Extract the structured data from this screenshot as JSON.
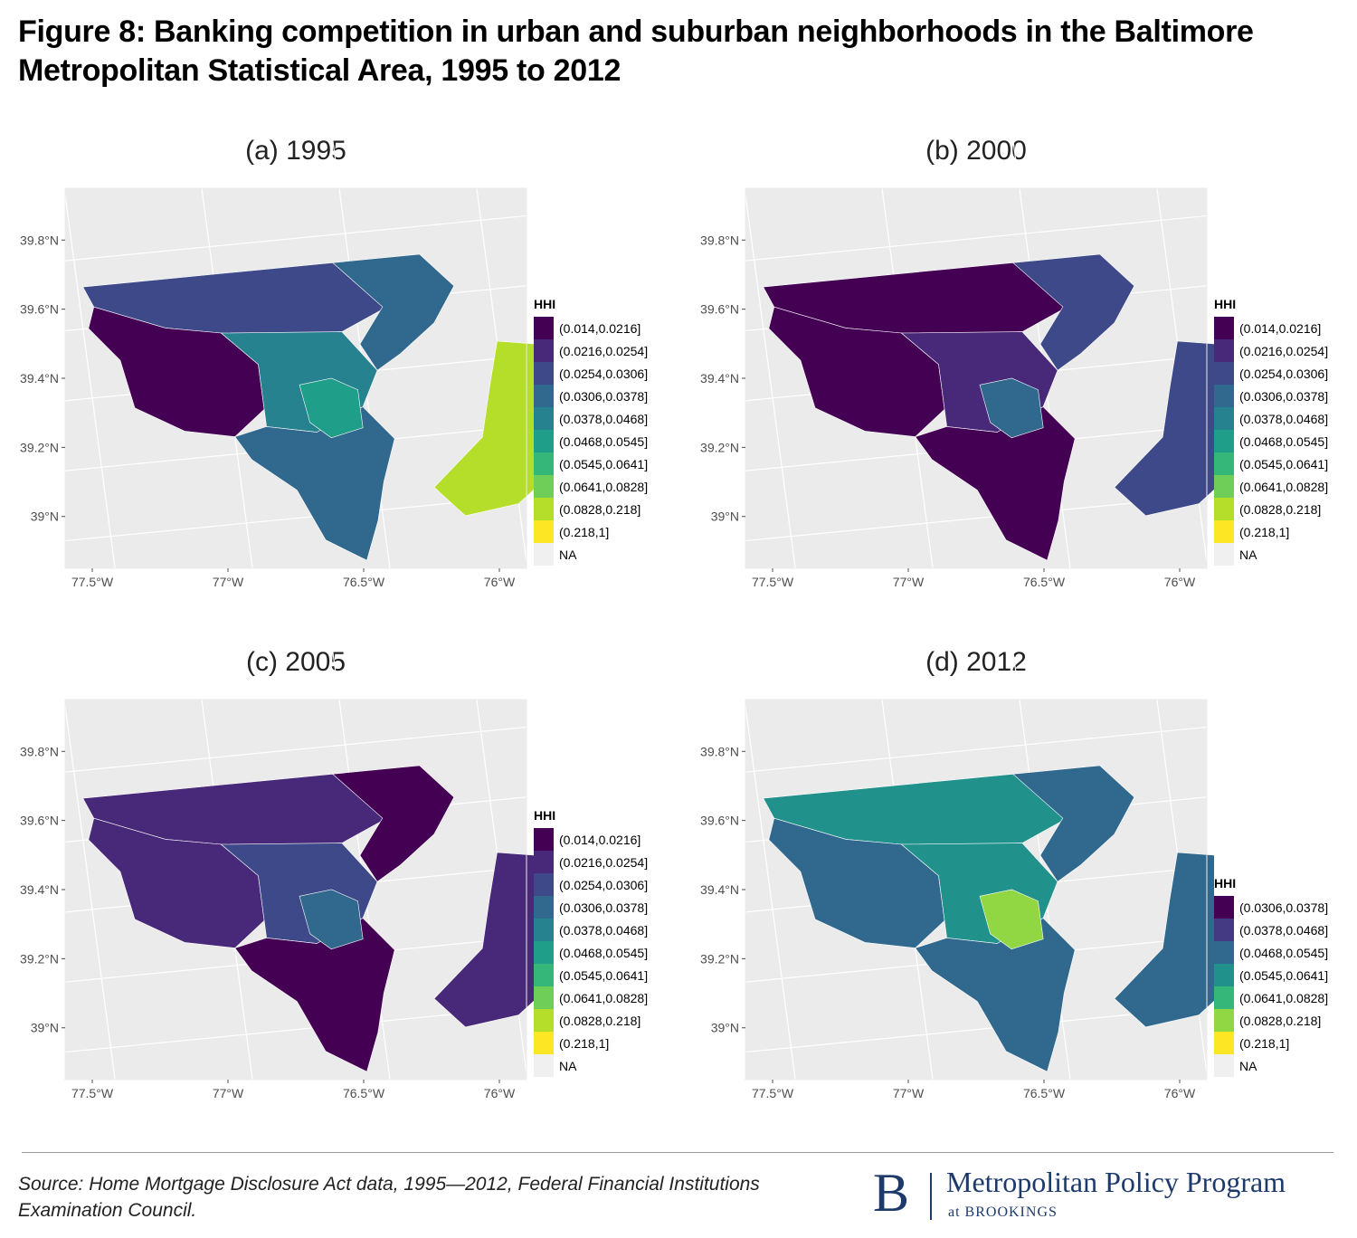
{
  "title": "Figure 8: Banking competition in urban and suburban neighborhoods in the Baltimore Metropolitan Statistical Area, 1995 to 2012",
  "chart_data": {
    "type": "choropleth map",
    "lat_ticks": [
      "39.8°N",
      "39.6°N",
      "39.4°N",
      "39.2°N",
      "39°N"
    ],
    "lon_ticks": [
      "77.5°W",
      "77°W",
      "76.5°W",
      "76°W"
    ],
    "lat_values": [
      39.8,
      39.6,
      39.4,
      39.2,
      39.0
    ],
    "lon_values": [
      -77.5,
      -77.0,
      -76.5,
      -76.0
    ],
    "lat_range": [
      38.85,
      39.95
    ],
    "lon_range": [
      -77.6,
      -75.9
    ],
    "palette": [
      "#440154",
      "#482878",
      "#3e4989",
      "#31688e",
      "#26828e",
      "#1f9e89",
      "#35b779",
      "#6ece58",
      "#b5de2b",
      "#fde725",
      "#f0f0f0"
    ],
    "panels": [
      {
        "title": "(a) 1995",
        "legend_title": "HHI",
        "legend": [
          {
            "label": "(0.014,0.0216]",
            "color": "#440154"
          },
          {
            "label": "(0.0216,0.0254]",
            "color": "#482878"
          },
          {
            "label": "(0.0254,0.0306]",
            "color": "#3e4989"
          },
          {
            "label": "(0.0306,0.0378]",
            "color": "#31688e"
          },
          {
            "label": "(0.0378,0.0468]",
            "color": "#26828e"
          },
          {
            "label": "(0.0468,0.0545]",
            "color": "#1f9e89"
          },
          {
            "label": "(0.0545,0.0641]",
            "color": "#35b779"
          },
          {
            "label": "(0.0641,0.0828]",
            "color": "#6ece58"
          },
          {
            "label": "(0.0828,0.218]",
            "color": "#b5de2b"
          },
          {
            "label": "(0.218,1]",
            "color": "#fde725"
          },
          {
            "label": "NA",
            "color": "#f0f0f0"
          }
        ],
        "region_colors": {
          "north": "#3e4989",
          "northeast": "#31688e",
          "west": "#440154",
          "center": "#26828e",
          "south": "#31688e",
          "eastern_shore": "#b5de2b",
          "city": "#1f9e89"
        }
      },
      {
        "title": "(b) 2000",
        "legend_title": "HHI",
        "legend": [
          {
            "label": "(0.014,0.0216]",
            "color": "#440154"
          },
          {
            "label": "(0.0216,0.0254]",
            "color": "#482878"
          },
          {
            "label": "(0.0254,0.0306]",
            "color": "#3e4989"
          },
          {
            "label": "(0.0306,0.0378]",
            "color": "#31688e"
          },
          {
            "label": "(0.0378,0.0468]",
            "color": "#26828e"
          },
          {
            "label": "(0.0468,0.0545]",
            "color": "#1f9e89"
          },
          {
            "label": "(0.0545,0.0641]",
            "color": "#35b779"
          },
          {
            "label": "(0.0641,0.0828]",
            "color": "#6ece58"
          },
          {
            "label": "(0.0828,0.218]",
            "color": "#b5de2b"
          },
          {
            "label": "(0.218,1]",
            "color": "#fde725"
          },
          {
            "label": "NA",
            "color": "#f0f0f0"
          }
        ],
        "region_colors": {
          "north": "#440154",
          "northeast": "#3e4989",
          "west": "#440154",
          "center": "#482878",
          "south": "#440154",
          "eastern_shore": "#3e4989",
          "city": "#31688e"
        }
      },
      {
        "title": "(c) 2005",
        "legend_title": "HHI",
        "legend": [
          {
            "label": "(0.014,0.0216]",
            "color": "#440154"
          },
          {
            "label": "(0.0216,0.0254]",
            "color": "#482878"
          },
          {
            "label": "(0.0254,0.0306]",
            "color": "#3e4989"
          },
          {
            "label": "(0.0306,0.0378]",
            "color": "#31688e"
          },
          {
            "label": "(0.0378,0.0468]",
            "color": "#26828e"
          },
          {
            "label": "(0.0468,0.0545]",
            "color": "#1f9e89"
          },
          {
            "label": "(0.0545,0.0641]",
            "color": "#35b779"
          },
          {
            "label": "(0.0641,0.0828]",
            "color": "#6ece58"
          },
          {
            "label": "(0.0828,0.218]",
            "color": "#b5de2b"
          },
          {
            "label": "(0.218,1]",
            "color": "#fde725"
          },
          {
            "label": "NA",
            "color": "#f0f0f0"
          }
        ],
        "region_colors": {
          "north": "#482878",
          "northeast": "#440154",
          "west": "#482878",
          "center": "#3e4989",
          "south": "#440154",
          "eastern_shore": "#482878",
          "city": "#31688e"
        }
      },
      {
        "title": "(d) 2012",
        "legend_title": "HHI",
        "legend": [
          {
            "label": "(0.0306,0.0378]",
            "color": "#440154"
          },
          {
            "label": "(0.0378,0.0468]",
            "color": "#443983"
          },
          {
            "label": "(0.0468,0.0545]",
            "color": "#31688e"
          },
          {
            "label": "(0.0545,0.0641]",
            "color": "#21918c"
          },
          {
            "label": "(0.0641,0.0828]",
            "color": "#35b779"
          },
          {
            "label": "(0.0828,0.218]",
            "color": "#90d743"
          },
          {
            "label": "(0.218,1]",
            "color": "#fde725"
          },
          {
            "label": "NA",
            "color": "#f0f0f0"
          }
        ],
        "region_colors": {
          "north": "#21918c",
          "northeast": "#31688e",
          "west": "#31688e",
          "center": "#21918c",
          "south": "#31688e",
          "eastern_shore": "#31688e",
          "city": "#90d743"
        }
      }
    ]
  },
  "source": "Source: Home Mortgage Disclosure Act data, 1995—2012, Federal Financial Institutions Examination Council.",
  "logo": {
    "letter": "B",
    "name": "Metropolitan Policy Program",
    "sub": "at BROOKINGS"
  }
}
